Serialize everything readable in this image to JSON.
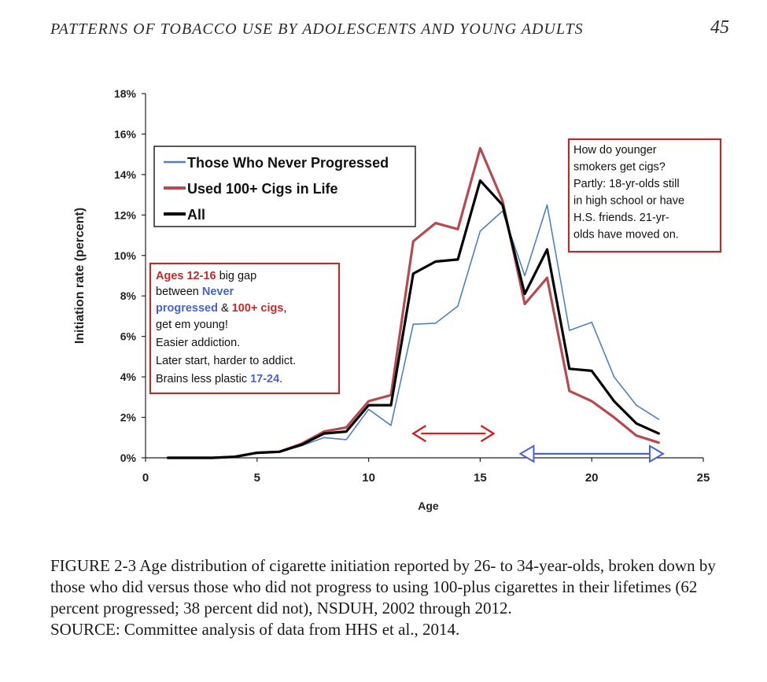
{
  "header": {
    "running_head": "PATTERNS OF TOBACCO USE BY ADOLESCENTS AND YOUNG ADULTS",
    "page_number": "45"
  },
  "chart_data": {
    "type": "line",
    "xlabel": "Age",
    "ylabel": "Initiation rate (percent)",
    "xlim": [
      0,
      25
    ],
    "ylim": [
      0,
      18
    ],
    "x_ticks": [
      "0",
      "5",
      "10",
      "15",
      "20",
      "25"
    ],
    "y_ticks": [
      "0%",
      "2%",
      "4%",
      "6%",
      "8%",
      "10%",
      "12%",
      "14%",
      "16%",
      "18%"
    ],
    "grid": false,
    "legend_position": "top-left",
    "x": [
      1,
      2,
      3,
      4,
      5,
      6,
      7,
      8,
      9,
      10,
      11,
      12,
      13,
      14,
      15,
      16,
      17,
      18,
      19,
      20,
      21,
      22,
      23
    ],
    "series": [
      {
        "name": "Those Who Never Progressed",
        "color": "#4f81bd",
        "values": [
          0,
          0,
          0,
          0.05,
          0.25,
          0.3,
          0.6,
          1.0,
          0.9,
          2.4,
          1.6,
          6.6,
          6.65,
          7.5,
          11.2,
          12.2,
          9.0,
          12.5,
          6.3,
          6.7,
          4.0,
          2.6,
          1.9
        ]
      },
      {
        "name": "Used 100+ Cigs in Life",
        "color": "#b44b50",
        "values": [
          0,
          0,
          0,
          0.05,
          0.25,
          0.3,
          0.7,
          1.3,
          1.5,
          2.8,
          3.1,
          10.7,
          11.6,
          11.3,
          15.3,
          12.7,
          7.6,
          8.9,
          3.3,
          2.8,
          2.0,
          1.1,
          0.75
        ]
      },
      {
        "name": "All",
        "color": "#000000",
        "values": [
          0,
          0,
          0,
          0.05,
          0.25,
          0.3,
          0.65,
          1.2,
          1.3,
          2.6,
          2.6,
          9.1,
          9.7,
          9.8,
          13.7,
          12.5,
          8.1,
          10.3,
          4.4,
          4.3,
          2.8,
          1.7,
          1.2
        ]
      }
    ],
    "annotations": {
      "left_box": {
        "line1_red": "Ages 12-16",
        "line1_rest": " big gap",
        "line2_plain": "between ",
        "line2_blue": "Never",
        "line3_blue": "progressed",
        "line3_mid": " & ",
        "line3_red": "100+ cigs",
        "line3_end": ",",
        "line4": "get em young!",
        "line5": "Easier addiction.",
        "line6": "Later start, harder to addict.",
        "line7_plain": "Brains less plastic ",
        "line7_blue": "17-24",
        "line7_end": "."
      },
      "right_box": [
        "How do younger",
        "smokers get cigs?",
        "Partly: 18-yr-olds still",
        "in high school or have",
        "H.S. friends. 21-yr-",
        "olds have moved on."
      ],
      "red_arrow": {
        "from": 12,
        "to": 15.6,
        "y": 1.2,
        "color": "#cc2222"
      },
      "blue_arrow": {
        "from": 16.8,
        "to": 23.2,
        "y": 0.2,
        "color": "#4a63c9"
      }
    }
  },
  "caption": {
    "label": "FIGURE 2-3",
    "text": "Age distribution of cigarette initiation reported by 26- to 34-year-olds, broken down by those who did versus those who did not progress to using 100-plus cigarettes in their lifetimes (62 percent progressed; 38 percent did not), NSDUH, 2002 through 2012.",
    "source": "SOURCE: Committee analysis of data from HHS et al., 2014."
  }
}
